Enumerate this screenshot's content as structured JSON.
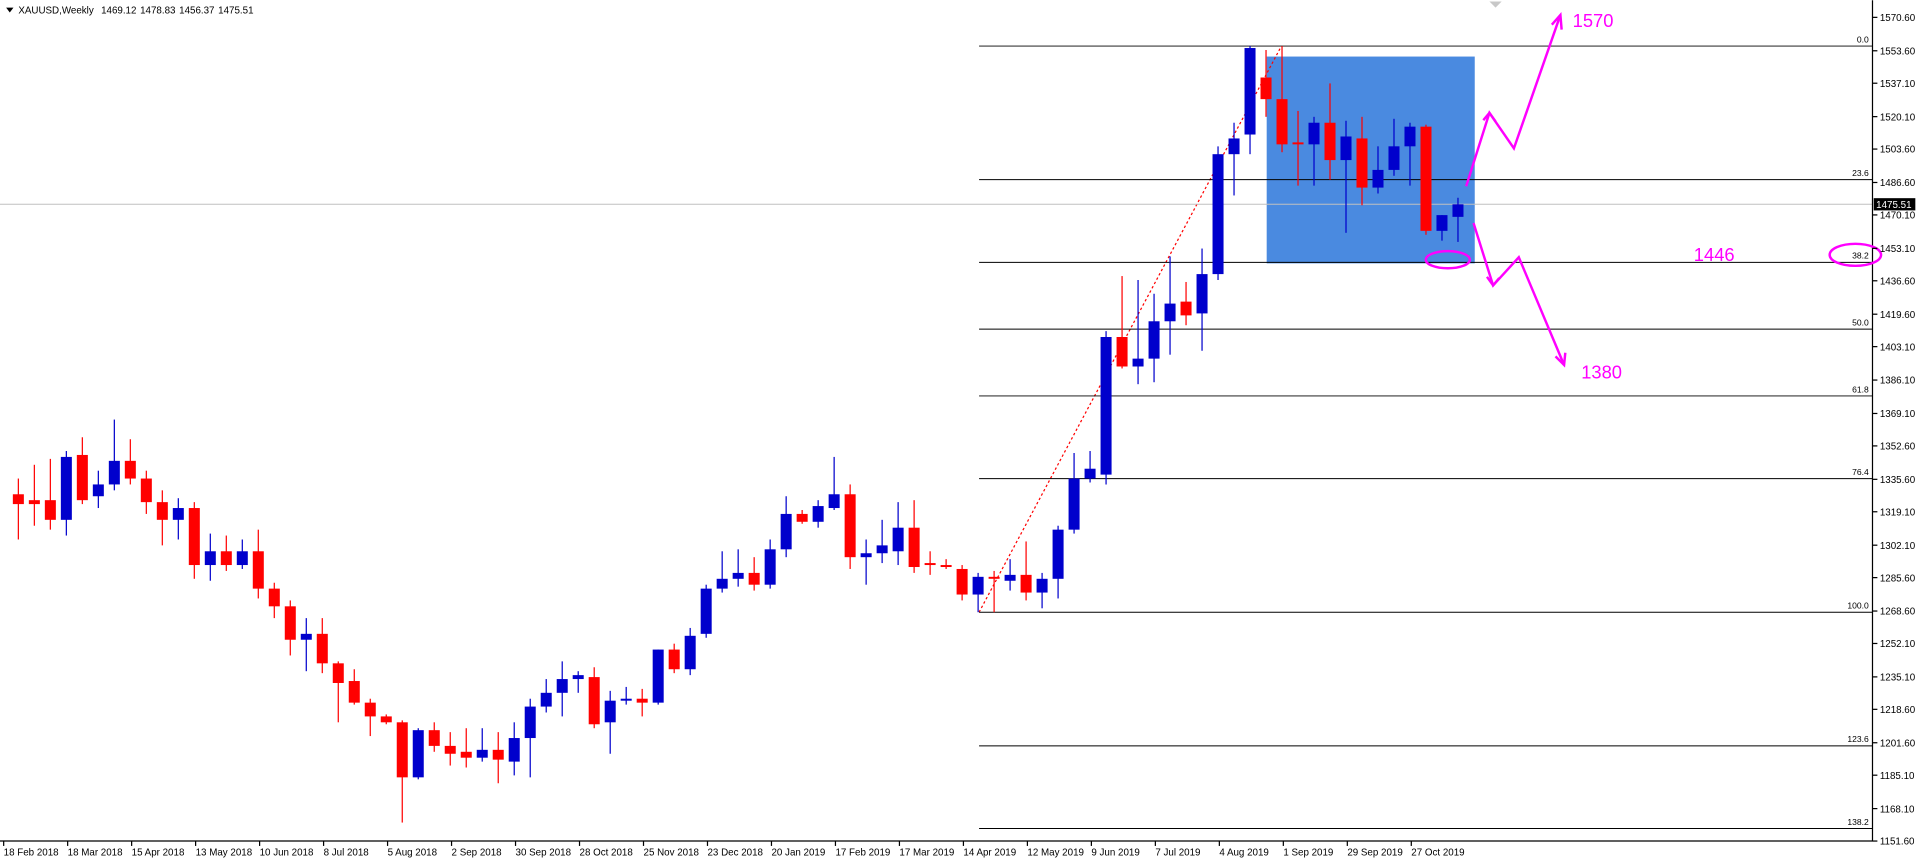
{
  "chart_data": {
    "type": "candlestick",
    "title": "XAUUSD,Weekly",
    "categories": [
      "18 Feb 2018",
      null,
      null,
      null,
      "18 Mar 2018",
      null,
      null,
      null,
      "15 Apr 2018",
      null,
      null,
      null,
      "13 May 2018",
      null,
      null,
      null,
      "10 Jun 2018",
      null,
      null,
      null,
      "8 Jul 2018",
      null,
      null,
      null,
      "5 Aug 2018",
      null,
      null,
      null,
      "2 Sep 2018",
      null,
      null,
      null,
      "30 Sep 2018",
      null,
      null,
      null,
      "28 Oct 2018",
      null,
      null,
      null,
      "25 Nov 2018",
      null,
      null,
      null,
      "23 Dec 2018",
      null,
      null,
      null,
      "20 Jan 2019",
      null,
      null,
      null,
      "17 Feb 2019",
      null,
      null,
      null,
      "17 Mar 2019",
      null,
      null,
      null,
      "14 Apr 2019",
      null,
      null,
      null,
      "12 May 2019",
      null,
      null,
      null,
      "9 Jun 2019",
      null,
      null,
      null,
      "7 Jul 2019",
      null,
      null,
      null,
      "4 Aug 2019",
      null,
      null,
      null,
      "1 Sep 2019",
      null,
      null,
      null,
      "29 Sep 2019",
      null,
      null,
      null,
      "27 Oct 2019",
      null,
      null
    ],
    "open": [
      1328,
      1325,
      1325,
      1315,
      1348,
      1327,
      1333,
      1345,
      1336,
      1324,
      1315,
      1321,
      1292,
      1299,
      1292,
      1299,
      1280,
      1271,
      1254,
      1257,
      1242,
      1233,
      1222,
      1215,
      1212,
      1184,
      1208,
      1200,
      1197,
      1194,
      1198,
      1192,
      1204,
      1220,
      1227,
      1234,
      1235,
      1212,
      1223,
      1224,
      1222,
      1249,
      1239,
      1257,
      1280,
      1285,
      1288,
      1282,
      1300,
      1318,
      1314,
      1321,
      1328,
      1296,
      1298,
      1299,
      1311,
      1293,
      1292,
      1290,
      1277,
      1286,
      1284,
      1287,
      1278,
      1285,
      1310,
      1336,
      1338,
      1408,
      1393,
      1397,
      1416,
      1426,
      1420,
      1440,
      1501,
      1511,
      1540,
      1529,
      1507,
      1506,
      1517,
      1498,
      1509,
      1484,
      1493,
      1505,
      1515,
      1462,
      1469.12
    ],
    "high": [
      1336,
      1343,
      1346,
      1350,
      1357,
      1340,
      1366,
      1356,
      1340,
      1330,
      1326,
      1324,
      1308,
      1307,
      1305,
      1310,
      1283,
      1274,
      1265,
      1265,
      1243,
      1239,
      1224,
      1216,
      1213,
      1209,
      1212,
      1207,
      1209,
      1209,
      1207,
      1212,
      1224,
      1234,
      1243,
      1238,
      1240,
      1228,
      1230,
      1229,
      1249,
      1252,
      1260,
      1282,
      1299,
      1300,
      1296,
      1305,
      1327,
      1320,
      1325,
      1347,
      1333,
      1305,
      1315,
      1324,
      1325,
      1299,
      1295,
      1292,
      1288,
      1289,
      1295,
      1304,
      1288,
      1312,
      1349,
      1350,
      1411,
      1439,
      1437,
      1430,
      1449,
      1436,
      1453,
      1505,
      1517,
      1556,
      1554,
      1556,
      1523,
      1520,
      1537,
      1518,
      1520,
      1505,
      1519,
      1517,
      1516,
      1470,
      1478.83
    ],
    "low": [
      1305,
      1312,
      1310,
      1307,
      1323,
      1321,
      1330,
      1333,
      1318,
      1302,
      1305,
      1285,
      1284,
      1289,
      1290,
      1275,
      1265,
      1246,
      1238,
      1237,
      1212,
      1221,
      1205,
      1211,
      1161,
      1183,
      1197,
      1190,
      1189,
      1192,
      1181,
      1185,
      1184,
      1217,
      1215,
      1227,
      1209,
      1196,
      1221,
      1215,
      1221,
      1237,
      1236,
      1255,
      1278,
      1281,
      1279,
      1280,
      1296,
      1313,
      1311,
      1320,
      1290,
      1282,
      1293,
      1292,
      1288,
      1287,
      1290,
      1274,
      1268,
      1268,
      1279,
      1274,
      1270,
      1275,
      1308,
      1334,
      1333,
      1392,
      1384,
      1385,
      1399,
      1414,
      1401,
      1437,
      1480,
      1501,
      1520,
      1502,
      1485,
      1485,
      1488,
      1461,
      1475,
      1481,
      1490,
      1485,
      1460,
      1457,
      1456.37
    ],
    "close": [
      1323,
      1323,
      1315,
      1347,
      1325,
      1333,
      1345,
      1336,
      1324,
      1315,
      1321,
      1292,
      1299,
      1292,
      1299,
      1280,
      1271,
      1254,
      1257,
      1242,
      1232,
      1222,
      1215,
      1212,
      1184,
      1208,
      1200,
      1196,
      1194,
      1198,
      1193,
      1204,
      1220,
      1227,
      1234,
      1236,
      1211,
      1223,
      1224,
      1222,
      1249,
      1239,
      1256,
      1280,
      1285,
      1288,
      1282,
      1300,
      1318,
      1314,
      1322,
      1328,
      1296,
      1298,
      1302,
      1311,
      1291,
      1292,
      1291,
      1277,
      1286,
      1285,
      1287,
      1278,
      1285,
      1310,
      1336,
      1341,
      1408,
      1393,
      1397,
      1416,
      1425,
      1419,
      1440,
      1501,
      1509,
      1555,
      1529,
      1506,
      1506,
      1517,
      1498,
      1510,
      1484,
      1493,
      1505,
      1515,
      1462,
      1470,
      1475.51
    ],
    "up_color": "#0000cc",
    "down_color": "#ff0000",
    "ylim": [
      1151.6,
      1579.3
    ],
    "yticks": [
      {
        "value": 1570.6,
        "label": "1570.60"
      },
      {
        "value": 1553.6,
        "label": "1553.60"
      },
      {
        "value": 1537.1,
        "label": "1537.10"
      },
      {
        "value": 1520.1,
        "label": "1520.10"
      },
      {
        "value": 1503.6,
        "label": "1503.60"
      },
      {
        "value": 1486.6,
        "label": "1486.60"
      },
      {
        "value": 1470.1,
        "label": "1470.10"
      },
      {
        "value": 1453.1,
        "label": "1453.10"
      },
      {
        "value": 1436.6,
        "label": "1436.60"
      },
      {
        "value": 1419.6,
        "label": "1419.60"
      },
      {
        "value": 1403.1,
        "label": "1403.10"
      },
      {
        "value": 1386.1,
        "label": "1386.10"
      },
      {
        "value": 1369.1,
        "label": "1369.10"
      },
      {
        "value": 1352.6,
        "label": "1352.60"
      },
      {
        "value": 1335.6,
        "label": "1335.60"
      },
      {
        "value": 1319.1,
        "label": "1319.10"
      },
      {
        "value": 1302.1,
        "label": "1302.10"
      },
      {
        "value": 1285.6,
        "label": "1285.60"
      },
      {
        "value": 1268.6,
        "label": "1268.60"
      },
      {
        "value": 1252.1,
        "label": "1252.10"
      },
      {
        "value": 1235.1,
        "label": "1235.10"
      },
      {
        "value": 1218.6,
        "label": "1218.60"
      },
      {
        "value": 1201.6,
        "label": "1201.60"
      },
      {
        "value": 1185.1,
        "label": "1185.10"
      },
      {
        "value": 1168.1,
        "label": "1168.10"
      },
      {
        "value": 1151.6,
        "label": "1151.60"
      }
    ],
    "fib_high": 1556,
    "fib_low": 1268,
    "fib_levels": [
      {
        "value": 0,
        "label": "0.0"
      },
      23.6,
      38.2,
      {
        "value": 50,
        "label": "50.0"
      },
      61.8,
      76.4,
      {
        "value": 100,
        "label": "100.0"
      },
      123.6,
      138.2
    ],
    "annotations": [
      "1570",
      "1446",
      "1380"
    ]
  }
}
